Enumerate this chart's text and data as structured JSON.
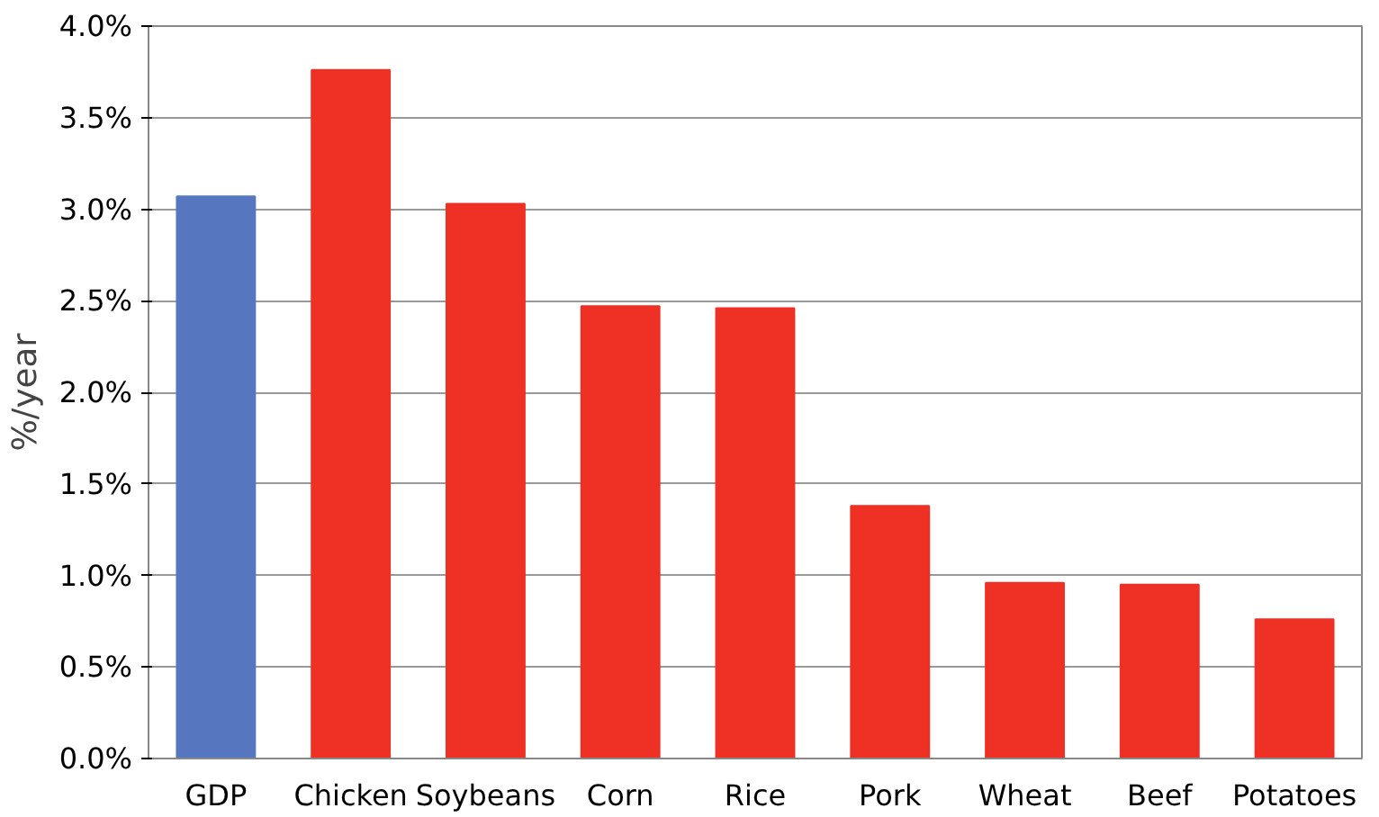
{
  "chart_data": {
    "type": "bar",
    "ylabel": "%/year",
    "categories": [
      "GDP",
      "Chicken",
      "Soybeans",
      "Corn",
      "Rice",
      "Pork",
      "Wheat",
      "Beef",
      "Potatoes"
    ],
    "values": [
      3.07,
      3.76,
      3.03,
      2.47,
      2.46,
      1.38,
      0.96,
      0.95,
      0.76
    ],
    "colors": [
      "#5677c0",
      "#ee3124",
      "#ee3124",
      "#ee3124",
      "#ee3124",
      "#ee3124",
      "#ee3124",
      "#ee3124",
      "#ee3124"
    ],
    "ylim": [
      0,
      4
    ],
    "yticks": [
      {
        "value": 0,
        "label": "0.0%"
      },
      {
        "value": 0.5,
        "label": "0.5%"
      },
      {
        "value": 1,
        "label": "1.0%"
      },
      {
        "value": 1.5,
        "label": "1.5%"
      },
      {
        "value": 2,
        "label": "2.0%"
      },
      {
        "value": 2.5,
        "label": "2.5%"
      },
      {
        "value": 3,
        "label": "3.0%"
      },
      {
        "value": 3.5,
        "label": "3.5%"
      },
      {
        "value": 4,
        "label": "4.0%"
      }
    ],
    "grid": "y"
  }
}
